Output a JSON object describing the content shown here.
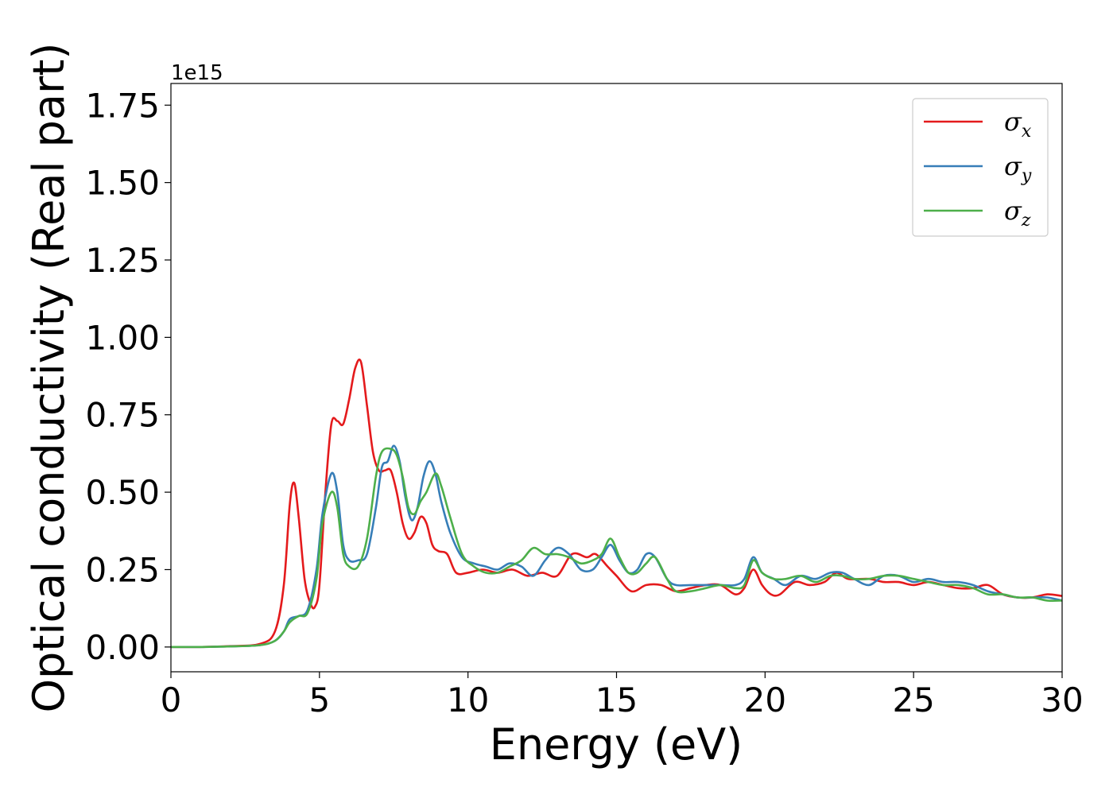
{
  "chart_data": {
    "type": "line",
    "xlabel": "Energy (eV)",
    "ylabel": "Optical conductivity (Real part)",
    "y_offset_label": "1e15",
    "xlim": [
      0,
      30
    ],
    "ylim": [
      -0.08,
      1.82
    ],
    "xticks": [
      0,
      5,
      10,
      15,
      20,
      25,
      30
    ],
    "xtick_labels": [
      "0",
      "5",
      "10",
      "15",
      "20",
      "25",
      "30"
    ],
    "yticks": [
      0.0,
      0.25,
      0.5,
      0.75,
      1.0,
      1.25,
      1.5,
      1.75
    ],
    "ytick_labels": [
      "0.00",
      "0.25",
      "0.50",
      "0.75",
      "1.00",
      "1.25",
      "1.50",
      "1.75"
    ],
    "grid": false,
    "legend_position": "top-right",
    "series": [
      {
        "name": "σ",
        "subscript": "x",
        "color": "#e41a1c",
        "x": [
          0,
          1,
          2,
          3,
          3.5,
          3.8,
          4.0,
          4.15,
          4.3,
          4.5,
          4.7,
          4.85,
          5.0,
          5.2,
          5.4,
          5.6,
          5.8,
          6.0,
          6.2,
          6.4,
          6.6,
          6.8,
          7.0,
          7.2,
          7.4,
          7.6,
          7.8,
          8.0,
          8.2,
          8.4,
          8.6,
          8.8,
          9.0,
          9.3,
          9.6,
          10.0,
          10.5,
          11.0,
          11.5,
          12.0,
          12.5,
          13.0,
          13.5,
          14.0,
          14.3,
          14.7,
          15.0,
          15.5,
          16.0,
          16.5,
          17.0,
          17.5,
          18.0,
          18.5,
          19.0,
          19.3,
          19.6,
          19.9,
          20.2,
          20.5,
          21.0,
          21.5,
          22.0,
          22.4,
          22.8,
          23.5,
          24.0,
          24.5,
          25.0,
          25.5,
          26.0,
          26.5,
          27.0,
          27.5,
          28.0,
          28.5,
          29.0,
          29.5,
          30.0
        ],
        "y": [
          0.0,
          0.0,
          0.003,
          0.01,
          0.05,
          0.2,
          0.46,
          0.53,
          0.42,
          0.22,
          0.14,
          0.13,
          0.2,
          0.5,
          0.72,
          0.73,
          0.72,
          0.8,
          0.9,
          0.92,
          0.78,
          0.63,
          0.57,
          0.57,
          0.57,
          0.5,
          0.4,
          0.35,
          0.37,
          0.42,
          0.4,
          0.33,
          0.31,
          0.3,
          0.24,
          0.24,
          0.25,
          0.24,
          0.25,
          0.23,
          0.24,
          0.23,
          0.3,
          0.29,
          0.3,
          0.26,
          0.23,
          0.18,
          0.2,
          0.2,
          0.18,
          0.19,
          0.2,
          0.2,
          0.17,
          0.19,
          0.25,
          0.2,
          0.17,
          0.17,
          0.21,
          0.2,
          0.21,
          0.24,
          0.22,
          0.22,
          0.21,
          0.21,
          0.2,
          0.21,
          0.2,
          0.19,
          0.19,
          0.2,
          0.17,
          0.16,
          0.16,
          0.17,
          0.165
        ]
      },
      {
        "name": "σ",
        "subscript": "y",
        "color": "#377eb8",
        "x": [
          0,
          1,
          2,
          3,
          3.5,
          3.8,
          4.0,
          4.3,
          4.6,
          4.9,
          5.1,
          5.4,
          5.6,
          5.8,
          6.0,
          6.3,
          6.6,
          6.9,
          7.1,
          7.3,
          7.5,
          7.7,
          7.9,
          8.1,
          8.3,
          8.5,
          8.7,
          8.9,
          9.1,
          9.4,
          9.8,
          10.2,
          10.6,
          11.0,
          11.4,
          11.8,
          12.2,
          12.6,
          13.0,
          13.4,
          13.8,
          14.2,
          14.5,
          14.8,
          15.1,
          15.4,
          15.7,
          16.0,
          16.3,
          16.7,
          17.0,
          17.5,
          18.0,
          18.5,
          19.0,
          19.3,
          19.6,
          19.9,
          20.3,
          20.7,
          21.2,
          21.7,
          22.2,
          22.6,
          23.0,
          23.5,
          24.0,
          24.5,
          25.0,
          25.5,
          26.0,
          26.5,
          27.0,
          27.5,
          28.0,
          28.5,
          29.0,
          29.5,
          30.0
        ],
        "y": [
          0.0,
          0.0,
          0.002,
          0.006,
          0.02,
          0.05,
          0.09,
          0.1,
          0.12,
          0.25,
          0.43,
          0.56,
          0.5,
          0.33,
          0.28,
          0.28,
          0.3,
          0.45,
          0.58,
          0.6,
          0.65,
          0.6,
          0.48,
          0.41,
          0.45,
          0.55,
          0.6,
          0.56,
          0.47,
          0.37,
          0.29,
          0.27,
          0.26,
          0.25,
          0.27,
          0.26,
          0.23,
          0.28,
          0.32,
          0.3,
          0.25,
          0.25,
          0.29,
          0.33,
          0.28,
          0.24,
          0.25,
          0.3,
          0.29,
          0.22,
          0.2,
          0.2,
          0.2,
          0.2,
          0.2,
          0.22,
          0.29,
          0.24,
          0.22,
          0.2,
          0.23,
          0.22,
          0.24,
          0.24,
          0.22,
          0.2,
          0.23,
          0.23,
          0.21,
          0.22,
          0.21,
          0.21,
          0.2,
          0.18,
          0.17,
          0.16,
          0.16,
          0.16,
          0.15
        ]
      },
      {
        "name": "σ",
        "subscript": "z",
        "color": "#4daf4a",
        "x": [
          0,
          1,
          2,
          3,
          3.5,
          3.8,
          4.0,
          4.3,
          4.6,
          4.9,
          5.1,
          5.4,
          5.6,
          5.8,
          6.0,
          6.3,
          6.6,
          6.9,
          7.1,
          7.4,
          7.6,
          7.8,
          8.0,
          8.2,
          8.4,
          8.6,
          8.9,
          9.1,
          9.4,
          9.8,
          10.2,
          10.6,
          11.0,
          11.4,
          11.8,
          12.2,
          12.6,
          13.0,
          13.4,
          13.8,
          14.2,
          14.5,
          14.8,
          15.1,
          15.4,
          15.7,
          16.0,
          16.3,
          16.7,
          17.0,
          17.5,
          18.0,
          18.5,
          19.0,
          19.3,
          19.6,
          19.9,
          20.3,
          20.7,
          21.2,
          21.7,
          22.2,
          22.6,
          23.0,
          23.5,
          24.0,
          24.5,
          25.0,
          25.5,
          26.0,
          26.5,
          27.0,
          27.5,
          28.0,
          28.5,
          29.0,
          29.5,
          30.0
        ],
        "y": [
          0.0,
          0.0,
          0.002,
          0.006,
          0.02,
          0.05,
          0.08,
          0.1,
          0.11,
          0.22,
          0.4,
          0.5,
          0.45,
          0.3,
          0.26,
          0.26,
          0.35,
          0.55,
          0.63,
          0.64,
          0.62,
          0.55,
          0.45,
          0.43,
          0.47,
          0.5,
          0.56,
          0.52,
          0.42,
          0.3,
          0.26,
          0.24,
          0.24,
          0.26,
          0.28,
          0.32,
          0.3,
          0.3,
          0.29,
          0.27,
          0.28,
          0.3,
          0.35,
          0.29,
          0.24,
          0.24,
          0.27,
          0.29,
          0.22,
          0.18,
          0.18,
          0.19,
          0.2,
          0.19,
          0.2,
          0.28,
          0.24,
          0.22,
          0.22,
          0.23,
          0.21,
          0.23,
          0.23,
          0.22,
          0.22,
          0.23,
          0.23,
          0.22,
          0.21,
          0.2,
          0.2,
          0.19,
          0.17,
          0.17,
          0.16,
          0.16,
          0.15,
          0.15
        ]
      }
    ]
  }
}
